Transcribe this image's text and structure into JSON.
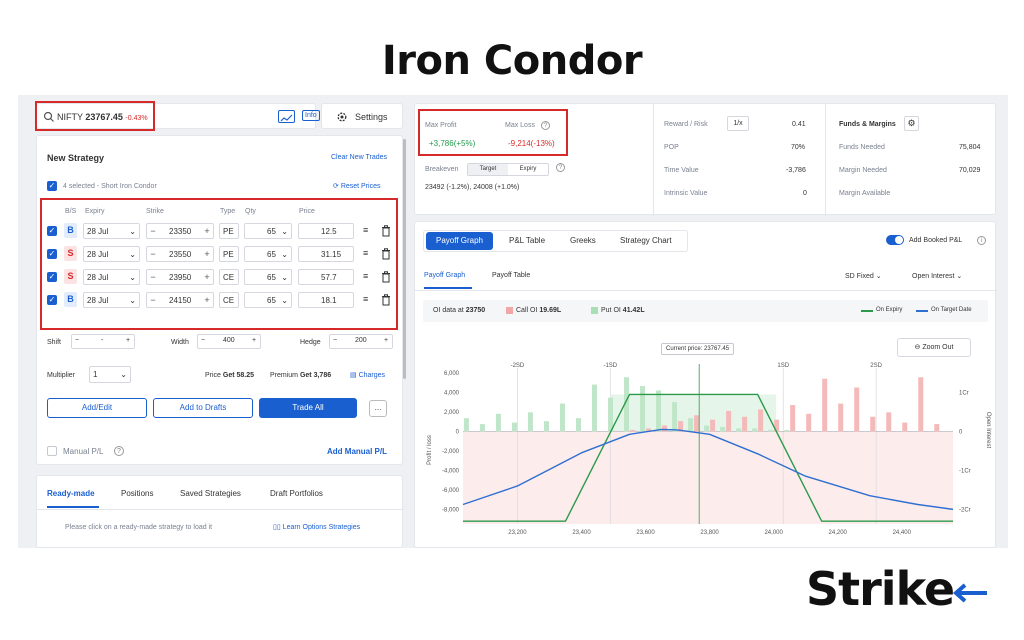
{
  "title": "Iron Condor",
  "brand": "Strike",
  "search": {
    "symbol": "NIFTY",
    "price": "23767.45",
    "change": "-0.43%",
    "info_label": "Info",
    "chart_icon": "trend-chart-icon",
    "settings_label": "Settings"
  },
  "strategy": {
    "heading": "New Strategy",
    "clear_label": "Clear New Trades",
    "selected_text": "4 selected - Short Iron Condor",
    "reset_label": "Reset Prices",
    "columns": [
      "B/S",
      "Expiry",
      "Strike",
      "Type",
      "Qty",
      "Price"
    ],
    "legs": [
      {
        "side": "B",
        "expiry": "28 Jul",
        "strike": "23350",
        "type": "PE",
        "qty": "65",
        "price": "12.5"
      },
      {
        "side": "S",
        "expiry": "28 Jul",
        "strike": "23550",
        "type": "PE",
        "qty": "65",
        "price": "31.15"
      },
      {
        "side": "S",
        "expiry": "28 Jul",
        "strike": "23950",
        "type": "CE",
        "qty": "65",
        "price": "57.7"
      },
      {
        "side": "B",
        "expiry": "28 Jul",
        "strike": "24150",
        "type": "CE",
        "qty": "65",
        "price": "18.1"
      }
    ],
    "shift_label": "Shift",
    "shift_value": "-",
    "width_label": "Width",
    "width_value": "400",
    "hedge_label": "Hedge",
    "hedge_value": "200",
    "multiplier_label": "Multiplier",
    "multiplier_value": "1",
    "price_label": "Price",
    "price_get": "Get 58.25",
    "premium_label": "Premium",
    "premium_get": "Get 3,786",
    "charges_label": "Charges",
    "add_edit_label": "Add/Edit",
    "add_drafts_label": "Add to Drafts",
    "trade_all_label": "Trade All",
    "more_label": "...",
    "manual_pl_label": "Manual P/L",
    "add_manual_pl_label": "Add Manual P/L"
  },
  "bottom_tabs": [
    "Ready-made",
    "Positions",
    "Saved Strategies",
    "Draft Portfolios"
  ],
  "bottom_hint": "Please click on a ready-made strategy to load it",
  "learn_label": "Learn Options Strategies",
  "summary": {
    "max_profit_label": "Max Profit",
    "max_profit_value": "+3,786(+5%)",
    "max_loss_label": "Max Loss",
    "max_loss_value": "-9,214(-13%)",
    "breakeven_label": "Breakeven",
    "target_tab": "Target",
    "expiry_tab": "Expiry",
    "breakeven_value": "23492 (-1.2%), 24008 (+1.0%)",
    "reward_risk_label": "Reward / Risk",
    "reward_risk_toggle": "1/x",
    "reward_risk_value": "0.41",
    "pop_label": "POP",
    "pop_value": "70%",
    "time_value_label": "Time Value",
    "time_value_value": "-3,786",
    "intrinsic_label": "Intrinsic Value",
    "intrinsic_value": "0",
    "funds_heading": "Funds & Margins",
    "funds_needed_label": "Funds Needed",
    "funds_needed_value": "75,804",
    "margin_needed_label": "Margin Needed",
    "margin_needed_value": "70,029",
    "margin_available_label": "Margin Available"
  },
  "chart_panel": {
    "tabs": [
      "Payoff Graph",
      "P&L Table",
      "Greeks",
      "Strategy Chart"
    ],
    "add_booked_label": "Add Booked P&L",
    "subtabs": [
      "Payoff Graph",
      "Payoff Table"
    ],
    "sd_label": "SD Fixed",
    "oi_label": "Open Interest",
    "oi_data_label": "OI data at",
    "oi_data_strike": "23750",
    "call_oi_label": "Call OI",
    "call_oi_value": "19.69L",
    "put_oi_label": "Put OI",
    "put_oi_value": "41.42L",
    "legend_expiry": "On Expiry",
    "legend_target": "On Target Date",
    "current_price_label": "Current price: 23767.45",
    "zoom_label": "Zoom Out",
    "y_axis_label": "Profit / loss",
    "y2_axis_label": "Open Interest",
    "sd_marks": [
      "-2SD",
      "-1SD",
      "1SD",
      "2SD"
    ]
  },
  "chart_data": {
    "type": "line",
    "x_ticks": [
      "23,200",
      "23,400",
      "23,600",
      "23,800",
      "24,000",
      "24,200",
      "24,400"
    ],
    "y_ticks": [
      "6,000",
      "4,000",
      "2,000",
      "0",
      "-2,000",
      "-4,000",
      "-6,000",
      "-8,000"
    ],
    "y2_ticks": [
      "1Cr",
      "0",
      "-1Cr",
      "-2Cr"
    ],
    "xlim": [
      23030,
      24560
    ],
    "ylim": [
      -9500,
      6500
    ],
    "series": [
      {
        "name": "On Expiry",
        "color": "#2b9a4a",
        "x": [
          23030,
          23350,
          23550,
          23950,
          24150,
          24560
        ],
        "y": [
          -9214,
          -9214,
          3786,
          3786,
          -9214,
          -9214
        ]
      },
      {
        "name": "On Target Date",
        "color": "#2f6fd1",
        "x": [
          23030,
          23200,
          23400,
          23550,
          23650,
          23700,
          23800,
          23950,
          24100,
          24300,
          24450,
          24560
        ],
        "y": [
          -7500,
          -5600,
          -2200,
          -300,
          200,
          150,
          -300,
          -2300,
          -4600,
          -6600,
          -7500,
          -8000
        ]
      }
    ],
    "oi_bars": {
      "strikes": [
        23050,
        23100,
        23150,
        23200,
        23250,
        23300,
        23350,
        23400,
        23450,
        23500,
        23550,
        23600,
        23650,
        23700,
        23750,
        23800,
        23850,
        23900,
        23950,
        24000,
        24050,
        24100,
        24150,
        24200,
        24250,
        24300,
        24350,
        24400,
        24450,
        24500
      ],
      "put_oi": [
        0.9,
        0.5,
        1.2,
        0.6,
        1.3,
        0.7,
        1.9,
        0.9,
        3.2,
        2.3,
        3.7,
        3.1,
        2.8,
        2.0,
        0.9,
        0.4,
        0.3,
        0.2,
        0.2,
        0.1,
        0.1,
        0,
        0,
        0,
        0,
        0,
        0,
        0,
        0,
        0
      ],
      "call_oi": [
        0,
        0,
        0,
        0,
        0,
        0,
        0,
        0,
        0,
        0,
        0.1,
        0.2,
        0.4,
        0.7,
        1.1,
        0.8,
        1.4,
        1.0,
        1.5,
        0.8,
        1.8,
        1.2,
        3.6,
        1.9,
        3.0,
        1.0,
        1.3,
        0.6,
        3.7,
        0.5
      ]
    }
  }
}
